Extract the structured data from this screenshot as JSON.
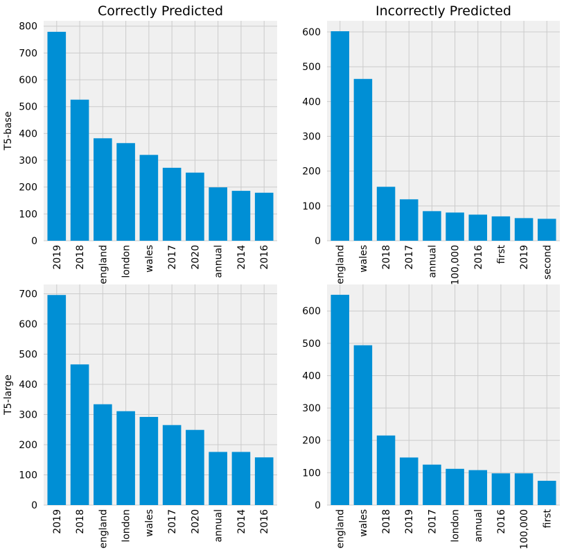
{
  "chart_data": [
    {
      "type": "bar",
      "title": "Correctly Predicted",
      "ylabel": "T5-base",
      "xlabel": "",
      "categories": [
        "2019",
        "2018",
        "england",
        "london",
        "wales",
        "2017",
        "2020",
        "annual",
        "2014",
        "2016"
      ],
      "values": [
        779,
        526,
        382,
        364,
        320,
        272,
        254,
        199,
        186,
        179
      ],
      "ylim": [
        0,
        820
      ],
      "yticks": [
        0,
        100,
        200,
        300,
        400,
        500,
        600,
        700,
        800
      ],
      "grid": true,
      "color": "#008fd5"
    },
    {
      "type": "bar",
      "title": "Incorrectly Predicted",
      "ylabel": "",
      "xlabel": "",
      "categories": [
        "england",
        "wales",
        "2018",
        "2017",
        "annual",
        "100,000",
        "2016",
        "first",
        "2019",
        "second"
      ],
      "values": [
        602,
        465,
        155,
        119,
        85,
        81,
        75,
        70,
        65,
        63
      ],
      "ylim": [
        0,
        632
      ],
      "yticks": [
        0,
        100,
        200,
        300,
        400,
        500,
        600
      ],
      "grid": true,
      "color": "#008fd5"
    },
    {
      "type": "bar",
      "title": "",
      "ylabel": "T5-large",
      "xlabel": "",
      "categories": [
        "2019",
        "2018",
        "england",
        "london",
        "wales",
        "2017",
        "2020",
        "annual",
        "2014",
        "2016"
      ],
      "values": [
        696,
        466,
        334,
        311,
        292,
        265,
        249,
        176,
        176,
        158
      ],
      "ylim": [
        0,
        731
      ],
      "yticks": [
        0,
        100,
        200,
        300,
        400,
        500,
        600,
        700
      ],
      "grid": true,
      "color": "#008fd5"
    },
    {
      "type": "bar",
      "title": "",
      "ylabel": "",
      "xlabel": "",
      "categories": [
        "england",
        "wales",
        "2018",
        "2019",
        "2017",
        "london",
        "annual",
        "2016",
        "100,000",
        "first"
      ],
      "values": [
        650,
        494,
        215,
        147,
        125,
        112,
        108,
        98,
        98,
        75
      ],
      "ylim": [
        0,
        682
      ],
      "yticks": [
        0,
        100,
        200,
        300,
        400,
        500,
        600
      ],
      "grid": true,
      "color": "#008fd5"
    }
  ]
}
